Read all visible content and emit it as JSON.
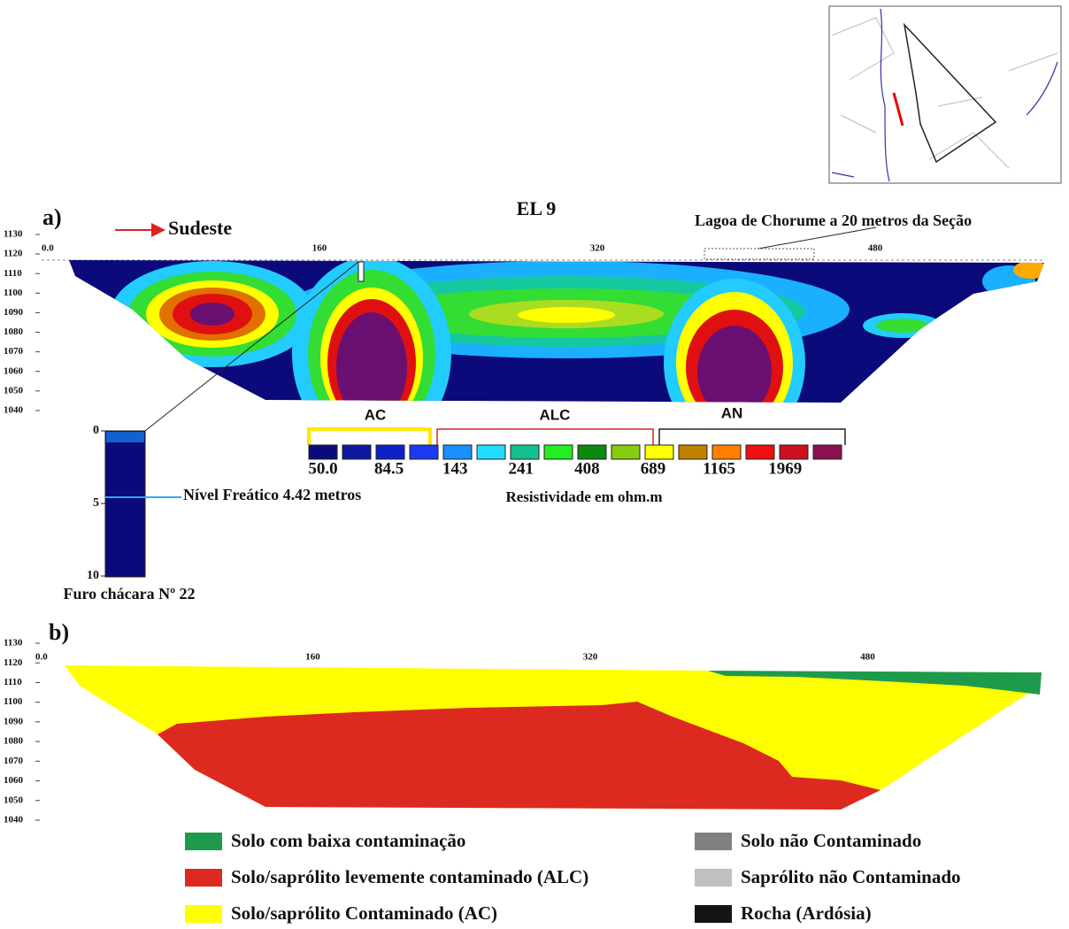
{
  "panel_a": {
    "label": "a)",
    "title": "EL 9",
    "direction": "Sudeste",
    "annotation": "Lagoa de Chorume a 20 metros da Seção",
    "x_ticks": [
      {
        "value": 0,
        "label": "0.0"
      },
      160,
      320,
      480
    ],
    "y_ticks": [
      1130,
      1120,
      1110,
      1100,
      1090,
      1080,
      1070,
      1060,
      1050,
      1040
    ],
    "zones": [
      "AC",
      "ALC",
      "AN"
    ],
    "scale_labels": [
      {
        "value": 50,
        "label": "50.0"
      },
      84.5,
      143,
      241,
      408,
      689,
      1165,
      1969
    ],
    "scale_title": "Resistividade em ohm.m",
    "borehole": {
      "label": "Furo chácara Nº 22",
      "depth_ticks": [
        0,
        5,
        10
      ],
      "water_table": "Nível Freático 4.42 metros"
    }
  },
  "panel_b": {
    "label": "b)",
    "x_ticks": [
      {
        "value": 0,
        "label": "0.0"
      },
      160,
      320,
      480
    ],
    "y_ticks": [
      1130,
      1120,
      1110,
      1100,
      1090,
      1080,
      1070,
      1060,
      1050,
      1040
    ],
    "legend": [
      {
        "name": "Solo com baixa contaminação",
        "color": "#1e9a4c"
      },
      {
        "name": "Solo/saprólito levemente contaminado (ALC)",
        "color": "#dd2a20"
      },
      {
        "name": "Solo/saprólito Contaminado (AC)",
        "color": "#ffff00"
      },
      {
        "name": "Solo não Contaminado",
        "color": "#808080"
      },
      {
        "name": "Saprólito não Contaminado",
        "color": "#c0c0c0"
      },
      {
        "name": "Rocha (Ardósia)",
        "color": "#141414"
      }
    ]
  }
}
